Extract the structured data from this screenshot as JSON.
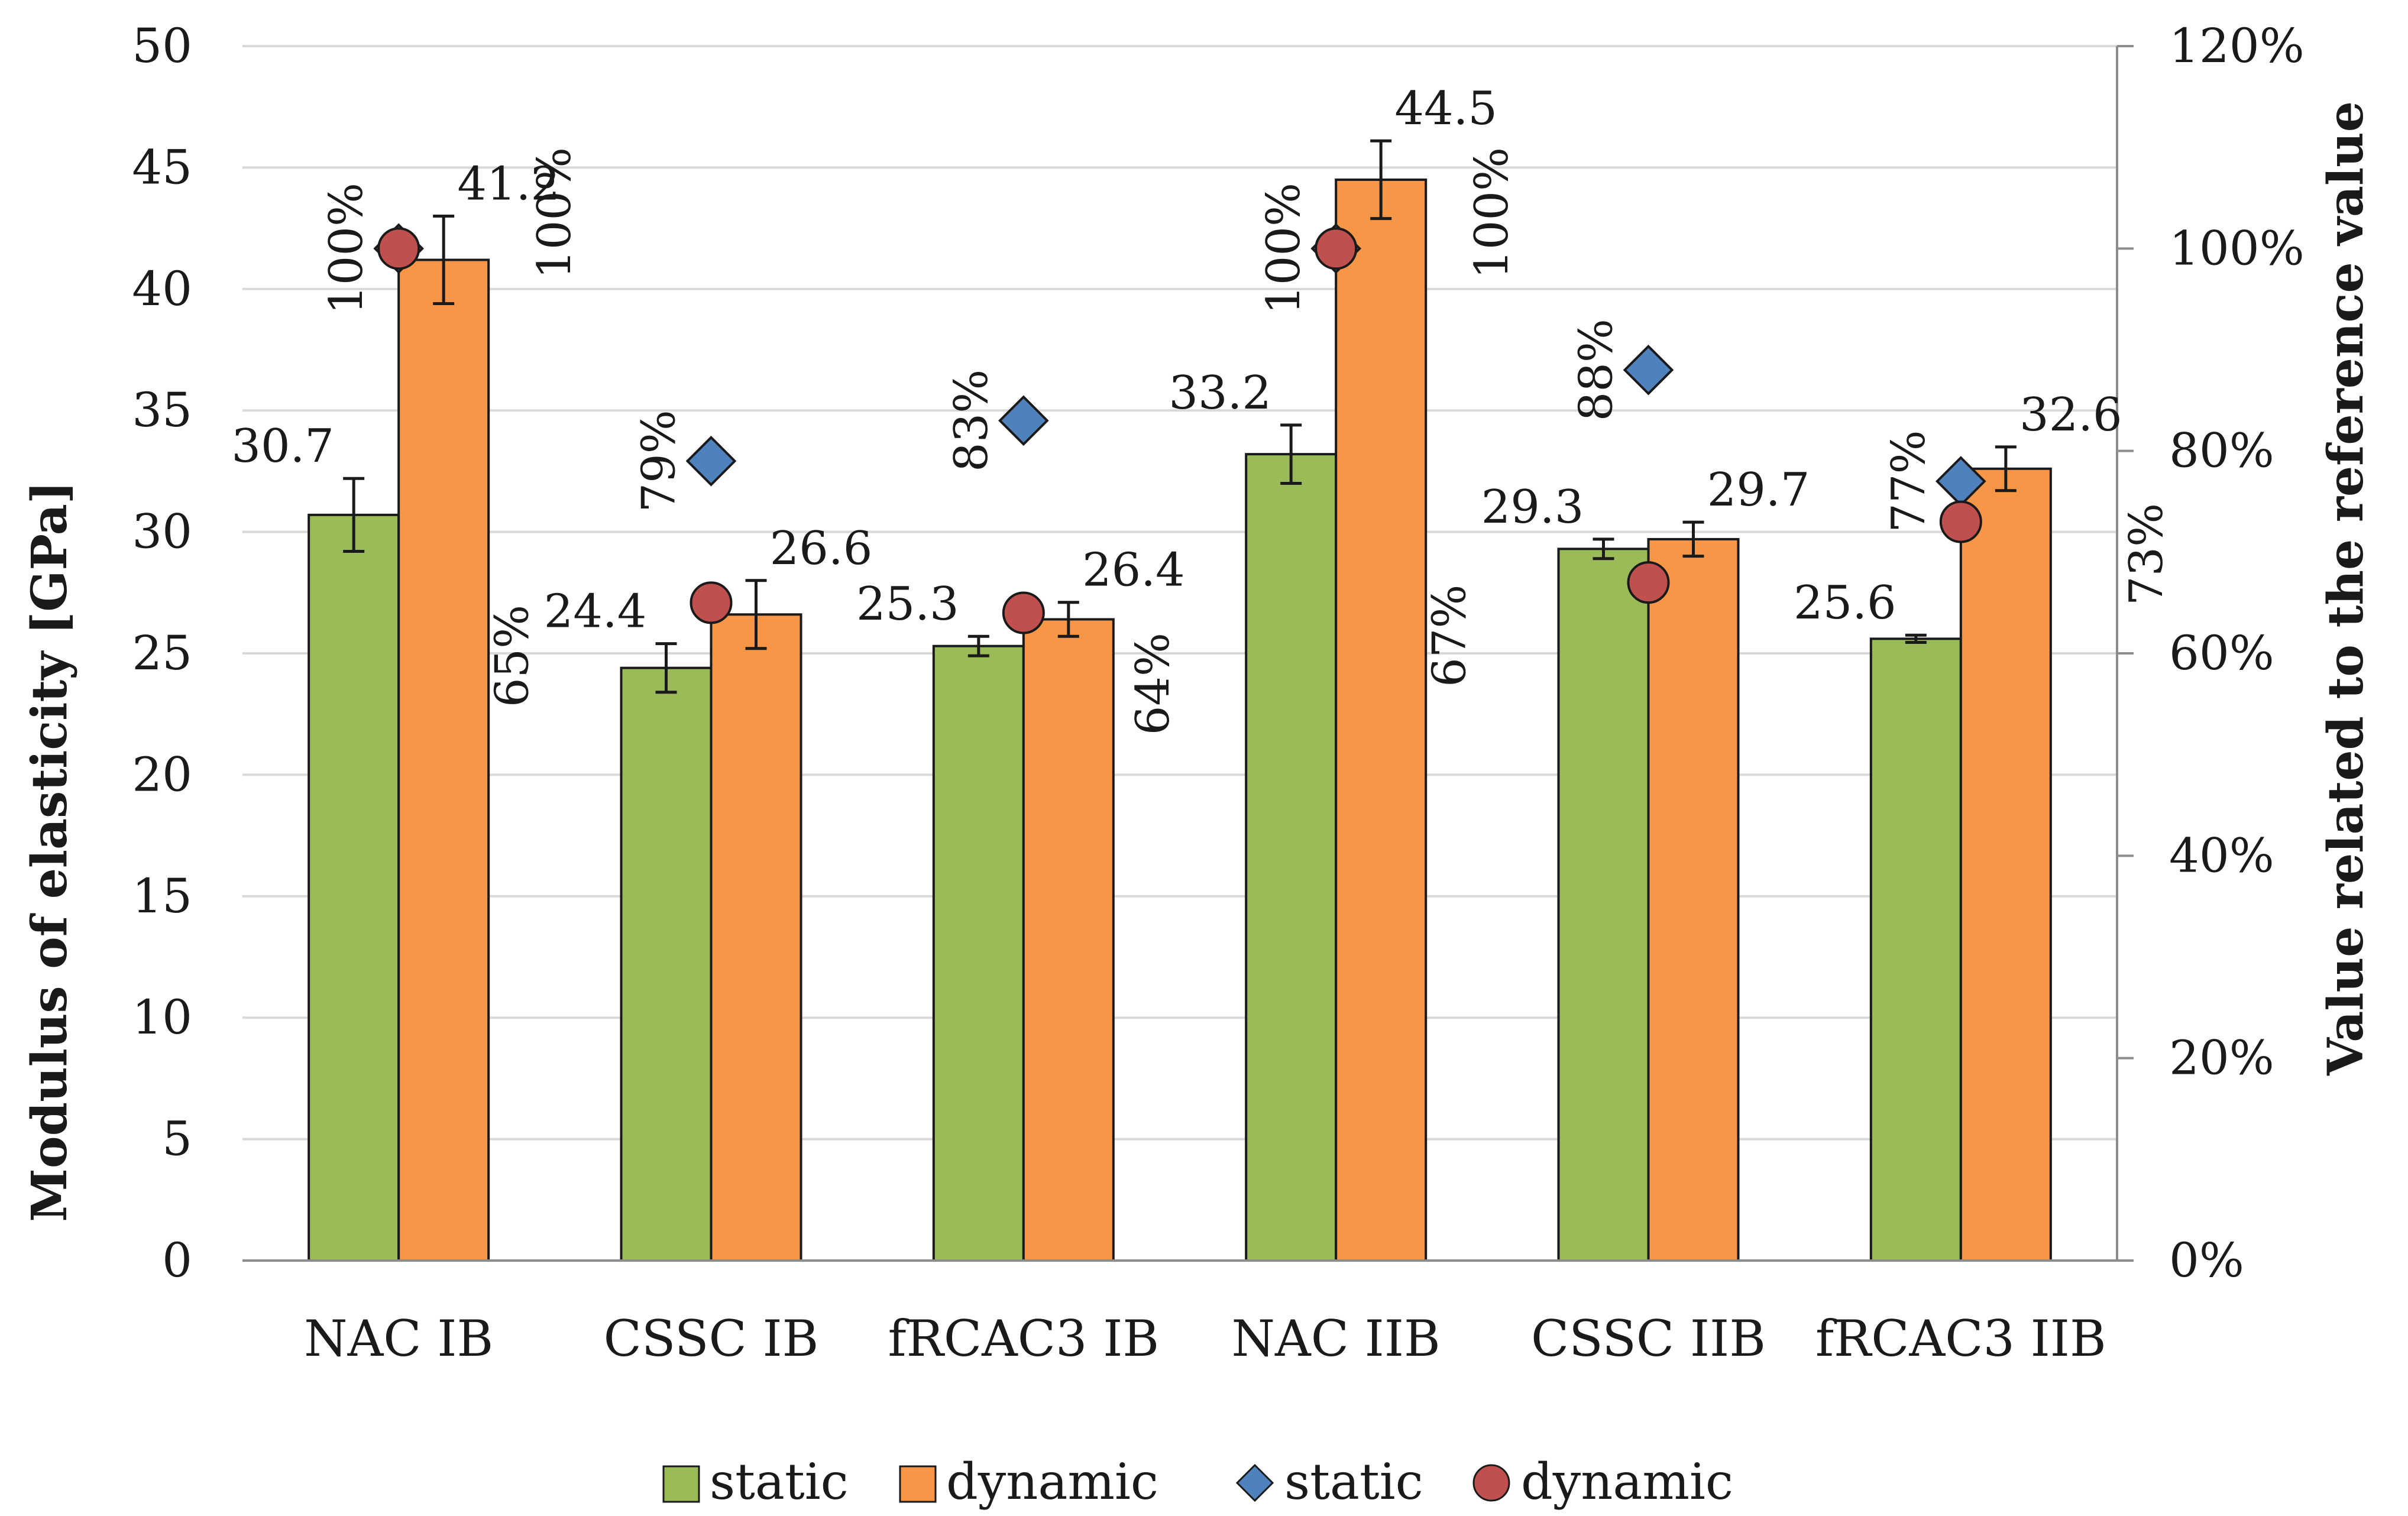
{
  "chart_data": {
    "type": "bar",
    "title": "",
    "xlabel": "",
    "ylabel": "Modulus of elasticity [GPa]",
    "y2label": "Value related to the reference value",
    "ylim": [
      0,
      50
    ],
    "y2lim": [
      0,
      1.2
    ],
    "yticks": [
      "0",
      "5",
      "10",
      "15",
      "20",
      "25",
      "30",
      "35",
      "40",
      "45",
      "50"
    ],
    "y2ticks": [
      "0%",
      "20%",
      "40%",
      "60%",
      "80%",
      "100%",
      "120%"
    ],
    "grid": true,
    "categories": [
      "NAC IB",
      "CSSC IB",
      "fRCAC3 IB",
      "NAC IIB",
      "CSSC IIB",
      "fRCAC3 IIB"
    ],
    "series": [
      {
        "name": "static",
        "kind": "bar",
        "axis": "left",
        "color": "#9BBB59",
        "values": [
          30.7,
          24.4,
          25.3,
          33.2,
          29.3,
          25.6
        ],
        "labels": [
          "30.7",
          "24.4",
          "25.3",
          "33.2",
          "29.3",
          "25.6"
        ],
        "errors": [
          1.5,
          1.0,
          0.4,
          1.2,
          0.4,
          0.15
        ]
      },
      {
        "name": "dynamic",
        "kind": "bar",
        "axis": "left",
        "color": "#F79646",
        "values": [
          41.2,
          26.6,
          26.4,
          44.5,
          29.7,
          32.6
        ],
        "labels": [
          "41.2",
          "26.6",
          "26.4",
          "44.5",
          "29.7",
          "32.6"
        ],
        "errors": [
          1.8,
          1.4,
          0.7,
          1.6,
          0.7,
          0.9
        ]
      },
      {
        "name": "static",
        "kind": "marker",
        "marker": "diamond",
        "axis": "right",
        "color": "#4F81BD",
        "values": [
          1.0,
          0.79,
          0.83,
          1.0,
          0.88,
          0.77
        ],
        "labels": [
          "100%",
          "79%",
          "83%",
          "100%",
          "88%",
          "77%"
        ]
      },
      {
        "name": "dynamic",
        "kind": "marker",
        "marker": "circle",
        "axis": "right",
        "color": "#C0504D",
        "values": [
          1.0,
          0.65,
          0.64,
          1.0,
          0.67,
          0.73
        ],
        "labels": [
          "100%",
          "65%",
          "64%",
          "100%",
          "67%",
          "73%"
        ]
      }
    ],
    "legend": [
      "static",
      "dynamic",
      "static",
      "dynamic"
    ],
    "legend_position": "bottom"
  }
}
